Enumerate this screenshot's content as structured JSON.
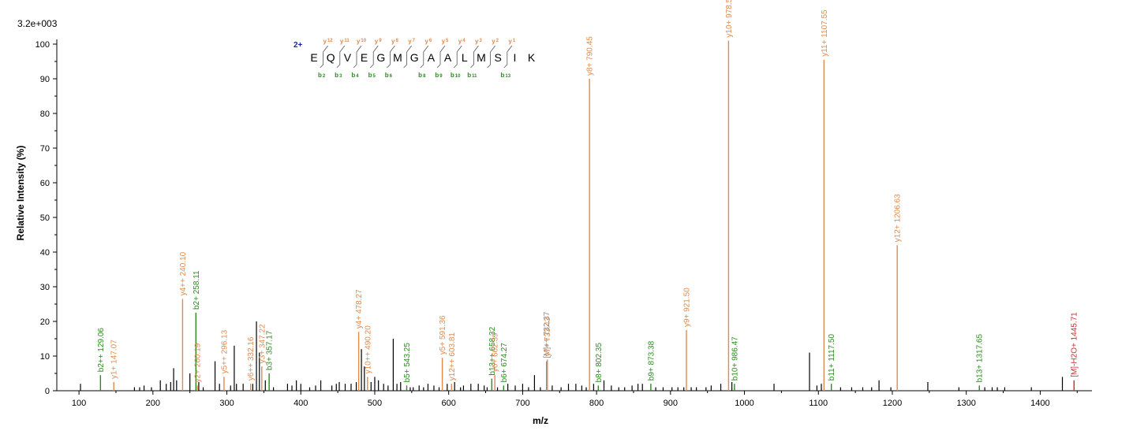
{
  "colors": {
    "y": "#e08a4e",
    "b": "#2a8a1e",
    "precursor": "#8a8a8a",
    "water": "#c0302e",
    "noise": "#000000",
    "charge": "#1a2a9a"
  },
  "max_intensity_label": "3.2e+003",
  "sequence": {
    "charge_label": "2+",
    "residues": [
      "E",
      "Q",
      "V",
      "E",
      "G",
      "M",
      "G",
      "A",
      "A",
      "L",
      "M",
      "S",
      "I",
      "K"
    ],
    "y_ions": [
      {
        "after": 1,
        "label": "y",
        "num": "12"
      },
      {
        "after": 2,
        "label": "y",
        "num": "11"
      },
      {
        "after": 3,
        "label": "y",
        "num": "10"
      },
      {
        "after": 4,
        "label": "y",
        "num": "9"
      },
      {
        "after": 5,
        "label": "y",
        "num": "8"
      },
      {
        "after": 6,
        "label": "y",
        "num": "7"
      },
      {
        "after": 7,
        "label": "y",
        "num": "6"
      },
      {
        "after": 8,
        "label": "y",
        "num": "5"
      },
      {
        "after": 9,
        "label": "y",
        "num": "4"
      },
      {
        "after": 10,
        "label": "y",
        "num": "3"
      },
      {
        "after": 11,
        "label": "y",
        "num": "2"
      },
      {
        "after": 12,
        "label": "y",
        "num": "1"
      }
    ],
    "b_ions": [
      {
        "after": 1,
        "label": "b",
        "num": "2"
      },
      {
        "after": 2,
        "label": "b",
        "num": "3"
      },
      {
        "after": 3,
        "label": "b",
        "num": "4"
      },
      {
        "after": 4,
        "label": "b",
        "num": "5"
      },
      {
        "after": 5,
        "label": "b",
        "num": "6"
      },
      {
        "after": 7,
        "label": "b",
        "num": "8"
      },
      {
        "after": 8,
        "label": "b",
        "num": "9"
      },
      {
        "after": 9,
        "label": "b",
        "num": "10"
      },
      {
        "after": 10,
        "label": "b",
        "num": "11"
      },
      {
        "after": 12,
        "label": "b",
        "num": "13"
      }
    ]
  },
  "chart_data": {
    "type": "bar",
    "xlabel": "m/z",
    "ylabel": "Relative Intensity (%)",
    "xlim": [
      70,
      1470
    ],
    "ylim": [
      0,
      100
    ],
    "xticks": [
      100,
      200,
      300,
      400,
      500,
      600,
      700,
      800,
      900,
      1000,
      1100,
      1200,
      1300,
      1400
    ],
    "yticks": [
      0,
      10,
      20,
      30,
      40,
      50,
      60,
      70,
      80,
      90,
      100
    ],
    "annotated_peaks": [
      {
        "x": 129.06,
        "y": 4.5,
        "label": "b2++ 129.06",
        "type": "b"
      },
      {
        "x": 147.07,
        "y": 2.5,
        "label": "y1+ 147.07",
        "type": "y"
      },
      {
        "x": 240.1,
        "y": 26.5,
        "label": "y4++ 240.10",
        "type": "y"
      },
      {
        "x": 258.11,
        "y": 22.5,
        "label": "b2+ 258.11",
        "type": "b"
      },
      {
        "x": 260.19,
        "y": 1.5,
        "label": "y2+ 260.19",
        "type": "y"
      },
      {
        "x": 296.13,
        "y": 4.0,
        "label": "y5++ 296.13",
        "type": "y"
      },
      {
        "x": 332.16,
        "y": 2.0,
        "label": "y6++ 332.16",
        "type": "y"
      },
      {
        "x": 347.22,
        "y": 7.0,
        "label": "y3+ 347.22",
        "type": "y"
      },
      {
        "x": 357.17,
        "y": 5.0,
        "label": "b3+ 357.17",
        "type": "b"
      },
      {
        "x": 478.27,
        "y": 17.0,
        "label": "y4+ 478.27",
        "type": "y"
      },
      {
        "x": 490.2,
        "y": 4.0,
        "label": "y10++ 490.20",
        "type": "y"
      },
      {
        "x": 543.25,
        "y": 1.5,
        "label": "b5+ 543.25",
        "type": "b"
      },
      {
        "x": 591.36,
        "y": 9.5,
        "label": "y5+ 591.36",
        "type": "y"
      },
      {
        "x": 603.81,
        "y": 2.0,
        "label": "y12++ 603.81",
        "type": "y"
      },
      {
        "x": 658.32,
        "y": 3.5,
        "label": "b13++ 658.32",
        "type": "b"
      },
      {
        "x": 662.39,
        "y": 4.5,
        "label": "y6+ 662.39",
        "type": "y"
      },
      {
        "x": 674.27,
        "y": 1.5,
        "label": "b6+ 674.27",
        "type": "b"
      },
      {
        "x": 732.37,
        "y": 8.5,
        "label": "[M]++ 732.37",
        "type": "precursor"
      },
      {
        "x": 733.43,
        "y": 9.0,
        "label": "y7+ 733.43",
        "type": "y"
      },
      {
        "x": 790.45,
        "y": 90.0,
        "label": "y8+ 790.45",
        "type": "y"
      },
      {
        "x": 802.35,
        "y": 1.5,
        "label": "b8+ 802.35",
        "type": "b"
      },
      {
        "x": 873.38,
        "y": 2.0,
        "label": "b9+ 873.38",
        "type": "b"
      },
      {
        "x": 921.5,
        "y": 17.5,
        "label": "y9+ 921.50",
        "type": "y"
      },
      {
        "x": 978.51,
        "y": 101.0,
        "label": "y10+ 978.51",
        "type": "y"
      },
      {
        "x": 986.47,
        "y": 2.0,
        "label": "b10+ 986.47",
        "type": "b"
      },
      {
        "x": 1107.55,
        "y": 95.5,
        "label": "y11+ 1107.55",
        "type": "y"
      },
      {
        "x": 1117.5,
        "y": 2.0,
        "label": "b11+ 1117.50",
        "type": "b"
      },
      {
        "x": 1206.63,
        "y": 42.0,
        "label": "y12+ 1206.63",
        "type": "y"
      },
      {
        "x": 1317.65,
        "y": 1.5,
        "label": "b13+ 1317.65",
        "type": "b"
      },
      {
        "x": 1445.71,
        "y": 3.0,
        "label": "[M]-H2O+ 1445.71",
        "type": "water"
      }
    ],
    "noise_peaks": [
      [
        102,
        2
      ],
      [
        175,
        1
      ],
      [
        182,
        1
      ],
      [
        188,
        1.5
      ],
      [
        198,
        1
      ],
      [
        210,
        3
      ],
      [
        218,
        2
      ],
      [
        224,
        2.5
      ],
      [
        228,
        6.5
      ],
      [
        232,
        3
      ],
      [
        250,
        5
      ],
      [
        262,
        2.5
      ],
      [
        268,
        1
      ],
      [
        284,
        8.5
      ],
      [
        290,
        2
      ],
      [
        305,
        1.5
      ],
      [
        310,
        13
      ],
      [
        313,
        2
      ],
      [
        322,
        2
      ],
      [
        335,
        2
      ],
      [
        340,
        20
      ],
      [
        344,
        11
      ],
      [
        352,
        3
      ],
      [
        363,
        1
      ],
      [
        382,
        2
      ],
      [
        388,
        1.5
      ],
      [
        394,
        3
      ],
      [
        400,
        2
      ],
      [
        412,
        1
      ],
      [
        420,
        1.5
      ],
      [
        427,
        3
      ],
      [
        442,
        1.5
      ],
      [
        448,
        2
      ],
      [
        452,
        2.5
      ],
      [
        460,
        2
      ],
      [
        468,
        2
      ],
      [
        475,
        2.5
      ],
      [
        482,
        12
      ],
      [
        486,
        7
      ],
      [
        495,
        2.5
      ],
      [
        500,
        4
      ],
      [
        505,
        3
      ],
      [
        512,
        2
      ],
      [
        518,
        1.5
      ],
      [
        525,
        15
      ],
      [
        530,
        2
      ],
      [
        535,
        2.5
      ],
      [
        548,
        1
      ],
      [
        552,
        1
      ],
      [
        560,
        1.5
      ],
      [
        566,
        1
      ],
      [
        572,
        2
      ],
      [
        580,
        1.5
      ],
      [
        587,
        1
      ],
      [
        598,
        2
      ],
      [
        608,
        2.5
      ],
      [
        616,
        1
      ],
      [
        620,
        1.5
      ],
      [
        630,
        2
      ],
      [
        640,
        2
      ],
      [
        648,
        1.5
      ],
      [
        652,
        1
      ],
      [
        666,
        1
      ],
      [
        680,
        2
      ],
      [
        690,
        1.5
      ],
      [
        700,
        2
      ],
      [
        708,
        1
      ],
      [
        716,
        4.5
      ],
      [
        724,
        1
      ],
      [
        740,
        1.5
      ],
      [
        752,
        1
      ],
      [
        762,
        2
      ],
      [
        772,
        2
      ],
      [
        780,
        1.5
      ],
      [
        786,
        1
      ],
      [
        796,
        2
      ],
      [
        810,
        3
      ],
      [
        820,
        1.5
      ],
      [
        830,
        1
      ],
      [
        838,
        1
      ],
      [
        848,
        1.5
      ],
      [
        856,
        2
      ],
      [
        862,
        2
      ],
      [
        880,
        1
      ],
      [
        890,
        1
      ],
      [
        902,
        1
      ],
      [
        910,
        1
      ],
      [
        918,
        1
      ],
      [
        928,
        1
      ],
      [
        935,
        1
      ],
      [
        948,
        1
      ],
      [
        955,
        1.5
      ],
      [
        968,
        2
      ],
      [
        983,
        2.5
      ],
      [
        1040,
        2
      ],
      [
        1088,
        11
      ],
      [
        1098,
        1.5
      ],
      [
        1104,
        2
      ],
      [
        1130,
        1
      ],
      [
        1145,
        1
      ],
      [
        1160,
        1
      ],
      [
        1172,
        1
      ],
      [
        1182,
        3
      ],
      [
        1198,
        1
      ],
      [
        1248,
        2.5
      ],
      [
        1290,
        1
      ],
      [
        1325,
        1
      ],
      [
        1335,
        1
      ],
      [
        1342,
        1
      ],
      [
        1352,
        1
      ],
      [
        1388,
        1
      ],
      [
        1430,
        4
      ]
    ]
  }
}
